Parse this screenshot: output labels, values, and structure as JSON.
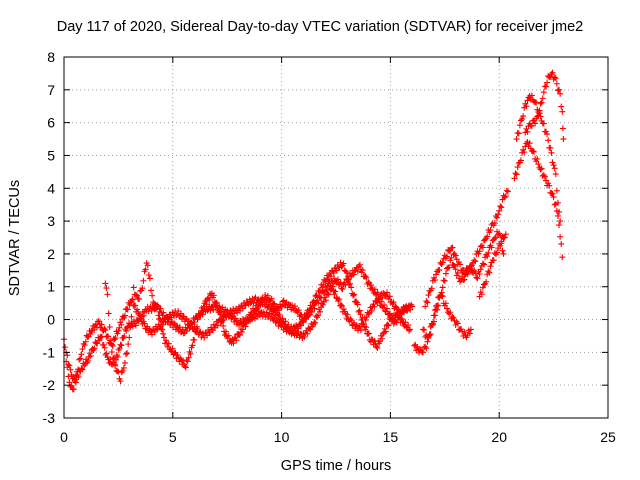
{
  "chart_data": {
    "type": "scatter",
    "title": "Day 117 of 2020, Sidereal Day-to-day VTEC variation (SDTVAR) for receiver jme2",
    "xlabel": "GPS time / hours",
    "ylabel": "SDTVAR / TECUs",
    "xlim": [
      0,
      25
    ],
    "ylim": [
      -3,
      8
    ],
    "x_ticks": [
      "0",
      "5",
      "10",
      "15",
      "20",
      "25"
    ],
    "y_ticks": [
      "-3",
      "-2",
      "-1",
      "0",
      "1",
      "2",
      "3",
      "4",
      "5",
      "6",
      "7",
      "8"
    ],
    "grid": true,
    "marker": "plus",
    "series": [
      {
        "name": "SDTVAR",
        "color": "#ff0000",
        "tracks": [
          [
            [
              0.0,
              -0.6
            ],
            [
              0.2,
              -1.8
            ],
            [
              0.4,
              -2.2
            ],
            [
              0.6,
              -1.6
            ],
            [
              0.8,
              -1.0
            ],
            [
              1.0,
              -0.6
            ],
            [
              1.3,
              -0.3
            ],
            [
              1.6,
              -0.1
            ],
            [
              1.9,
              -0.4
            ],
            [
              2.2,
              -0.8
            ],
            [
              2.5,
              -0.3
            ],
            [
              2.8,
              0.2
            ],
            [
              3.1,
              0.6
            ],
            [
              3.4,
              0.2
            ],
            [
              3.7,
              -0.2
            ],
            [
              4.0,
              -0.4
            ],
            [
              4.4,
              -0.2
            ],
            [
              4.8,
              0.1
            ],
            [
              5.2,
              0.2
            ],
            [
              5.6,
              0.0
            ],
            [
              6.0,
              -0.3
            ],
            [
              6.4,
              -0.5
            ],
            [
              6.8,
              -0.3
            ],
            [
              7.2,
              0.0
            ],
            [
              7.6,
              0.2
            ],
            [
              8.0,
              0.3
            ],
            [
              8.4,
              0.5
            ],
            [
              8.8,
              0.6
            ],
            [
              9.2,
              0.5
            ],
            [
              9.6,
              0.3
            ],
            [
              10.0,
              0.0
            ],
            [
              10.4,
              -0.3
            ],
            [
              10.8,
              -0.2
            ],
            [
              11.2,
              0.2
            ],
            [
              11.6,
              0.7
            ],
            [
              12.0,
              1.2
            ],
            [
              12.4,
              1.5
            ],
            [
              12.8,
              1.7
            ],
            [
              13.0,
              1.4
            ],
            [
              13.2,
              0.9
            ],
            [
              13.5,
              0.4
            ],
            [
              13.8,
              -0.2
            ],
            [
              14.1,
              -0.6
            ],
            [
              14.4,
              -0.8
            ],
            [
              14.7,
              -0.4
            ],
            [
              15.0,
              0.0
            ],
            [
              15.3,
              0.1
            ],
            [
              15.6,
              -0.1
            ],
            [
              15.9,
              -0.3
            ]
          ],
          [
            [
              0.1,
              -1.0
            ],
            [
              0.3,
              -1.6
            ],
            [
              0.5,
              -1.9
            ],
            [
              0.8,
              -1.5
            ],
            [
              1.1,
              -1.2
            ],
            [
              1.4,
              -0.8
            ],
            [
              1.7,
              -0.5
            ],
            [
              2.0,
              -1.2
            ],
            [
              2.3,
              -1.4
            ],
            [
              2.6,
              -0.8
            ],
            [
              2.9,
              -0.2
            ],
            [
              3.3,
              -0.1
            ],
            [
              3.8,
              0.3
            ],
            [
              4.3,
              0.4
            ],
            [
              4.7,
              0.0
            ],
            [
              5.1,
              -0.2
            ],
            [
              5.5,
              -0.4
            ],
            [
              6.0,
              0.0
            ],
            [
              6.5,
              0.3
            ],
            [
              7.0,
              0.4
            ],
            [
              7.5,
              0.2
            ],
            [
              8.0,
              -0.1
            ],
            [
              8.5,
              0.0
            ],
            [
              9.0,
              0.2
            ],
            [
              9.5,
              0.1
            ],
            [
              10.0,
              -0.2
            ],
            [
              10.5,
              -0.4
            ],
            [
              11.0,
              -0.5
            ],
            [
              11.5,
              -0.1
            ],
            [
              11.9,
              0.5
            ],
            [
              12.3,
              1.0
            ],
            [
              12.6,
              0.6
            ],
            [
              12.9,
              0.2
            ],
            [
              13.2,
              -0.1
            ],
            [
              13.6,
              -0.3
            ],
            [
              14.0,
              0.2
            ],
            [
              14.4,
              0.6
            ],
            [
              14.8,
              0.3
            ],
            [
              15.2,
              -0.1
            ],
            [
              15.6,
              0.3
            ],
            [
              16.0,
              0.4
            ]
          ],
          [
            [
              1.9,
              1.1
            ],
            [
              2.0,
              0.7
            ],
            [
              2.1,
              -0.3
            ],
            [
              2.2,
              -1.0
            ],
            [
              2.4,
              -1.5
            ],
            [
              2.6,
              -1.8
            ],
            [
              2.8,
              -1.3
            ],
            [
              3.0,
              -0.6
            ],
            [
              3.2,
              0.9
            ],
            [
              3.4,
              0.6
            ],
            [
              3.6,
              1.0
            ],
            [
              3.8,
              1.8
            ],
            [
              3.9,
              1.4
            ],
            [
              4.1,
              0.5
            ],
            [
              4.3,
              0.3
            ],
            [
              4.6,
              -0.6
            ],
            [
              4.9,
              -0.9
            ],
            [
              5.3,
              -1.2
            ],
            [
              5.6,
              -1.4
            ],
            [
              5.9,
              -0.8
            ],
            [
              6.2,
              0.1
            ],
            [
              6.5,
              0.5
            ],
            [
              6.8,
              0.8
            ],
            [
              7.1,
              0.3
            ],
            [
              7.4,
              -0.4
            ],
            [
              7.7,
              -0.7
            ],
            [
              8.0,
              -0.5
            ],
            [
              8.3,
              -0.2
            ],
            [
              8.6,
              0.2
            ],
            [
              8.9,
              0.4
            ],
            [
              9.2,
              0.7
            ],
            [
              9.5,
              0.6
            ],
            [
              9.8,
              0.3
            ],
            [
              10.1,
              0.5
            ],
            [
              10.4,
              0.4
            ],
            [
              10.7,
              0.3
            ],
            [
              11.0,
              0.0
            ],
            [
              11.3,
              0.2
            ],
            [
              11.6,
              0.5
            ],
            [
              11.9,
              0.8
            ],
            [
              12.2,
              1.1
            ],
            [
              12.5,
              1.2
            ],
            [
              12.8,
              1.0
            ],
            [
              13.1,
              1.3
            ],
            [
              13.4,
              1.5
            ],
            [
              13.6,
              1.6
            ],
            [
              13.9,
              1.2
            ],
            [
              14.2,
              0.9
            ],
            [
              14.5,
              0.7
            ],
            [
              14.8,
              0.8
            ],
            [
              15.1,
              0.5
            ],
            [
              15.4,
              0.2
            ],
            [
              15.7,
              0.3
            ],
            [
              15.9,
              0.4
            ]
          ],
          [
            [
              16.1,
              -0.8
            ],
            [
              16.4,
              -1.0
            ],
            [
              16.6,
              -0.9
            ],
            [
              16.8,
              -0.5
            ],
            [
              17.0,
              0.0
            ],
            [
              17.2,
              0.5
            ],
            [
              17.4,
              1.0
            ],
            [
              17.6,
              1.5
            ],
            [
              17.8,
              1.8
            ],
            [
              18.0,
              1.5
            ],
            [
              18.2,
              1.2
            ],
            [
              18.4,
              1.3
            ],
            [
              18.6,
              1.5
            ],
            [
              18.8,
              1.7
            ],
            [
              19.0,
              2.0
            ],
            [
              19.2,
              2.2
            ],
            [
              19.4,
              2.5
            ],
            [
              19.6,
              2.8
            ],
            [
              19.8,
              3.0
            ],
            [
              20.0,
              3.3
            ],
            [
              20.2,
              3.7
            ],
            [
              20.4,
              3.9
            ]
          ],
          [
            [
              16.5,
              -0.3
            ],
            [
              16.7,
              -0.6
            ],
            [
              16.9,
              -0.2
            ],
            [
              17.1,
              0.4
            ],
            [
              17.3,
              0.8
            ],
            [
              17.5,
              0.5
            ],
            [
              17.7,
              0.2
            ],
            [
              17.9,
              0.0
            ],
            [
              18.1,
              -0.2
            ],
            [
              18.3,
              -0.4
            ],
            [
              18.5,
              -0.5
            ],
            [
              18.7,
              -0.3
            ]
          ],
          [
            [
              16.6,
              0.4
            ],
            [
              16.8,
              0.8
            ],
            [
              17.0,
              1.2
            ],
            [
              17.2,
              1.5
            ],
            [
              17.4,
              1.8
            ],
            [
              17.6,
              2.0
            ],
            [
              17.8,
              2.2
            ],
            [
              18.0,
              1.9
            ],
            [
              18.2,
              1.6
            ],
            [
              18.4,
              1.4
            ],
            [
              18.6,
              1.6
            ],
            [
              18.8,
              1.5
            ],
            [
              19.0,
              1.3
            ],
            [
              19.2,
              1.6
            ],
            [
              19.4,
              1.9
            ],
            [
              19.6,
              2.2
            ],
            [
              19.8,
              2.5
            ],
            [
              20.0,
              2.7
            ],
            [
              20.2,
              2.0
            ]
          ],
          [
            [
              19.1,
              0.7
            ],
            [
              19.3,
              1.0
            ],
            [
              19.5,
              1.4
            ],
            [
              19.7,
              1.8
            ],
            [
              19.9,
              2.1
            ],
            [
              20.1,
              2.4
            ],
            [
              20.3,
              2.6
            ]
          ],
          [
            [
              20.7,
              4.3
            ],
            [
              20.9,
              4.7
            ],
            [
              21.1,
              5.1
            ],
            [
              21.3,
              5.4
            ],
            [
              21.5,
              5.2
            ],
            [
              21.7,
              4.9
            ],
            [
              21.9,
              4.6
            ],
            [
              22.1,
              4.3
            ],
            [
              22.3,
              4.0
            ],
            [
              22.5,
              3.7
            ],
            [
              22.7,
              3.2
            ],
            [
              22.8,
              2.6
            ],
            [
              22.9,
              1.9
            ]
          ],
          [
            [
              20.8,
              5.5
            ],
            [
              21.0,
              6.0
            ],
            [
              21.2,
              6.5
            ],
            [
              21.4,
              6.8
            ],
            [
              21.6,
              6.7
            ],
            [
              21.8,
              6.4
            ],
            [
              22.0,
              6.0
            ],
            [
              22.2,
              5.6
            ],
            [
              22.4,
              5.0
            ],
            [
              22.6,
              4.4
            ],
            [
              22.7,
              3.6
            ],
            [
              22.8,
              3.0
            ]
          ],
          [
            [
              21.2,
              5.7
            ],
            [
              21.4,
              5.9
            ],
            [
              21.6,
              6.0
            ],
            [
              21.8,
              6.2
            ],
            [
              22.0,
              6.8
            ],
            [
              22.2,
              7.3
            ],
            [
              22.4,
              7.5
            ],
            [
              22.6,
              7.3
            ],
            [
              22.8,
              6.8
            ],
            [
              22.9,
              6.3
            ],
            [
              22.95,
              5.5
            ]
          ]
        ]
      }
    ]
  }
}
